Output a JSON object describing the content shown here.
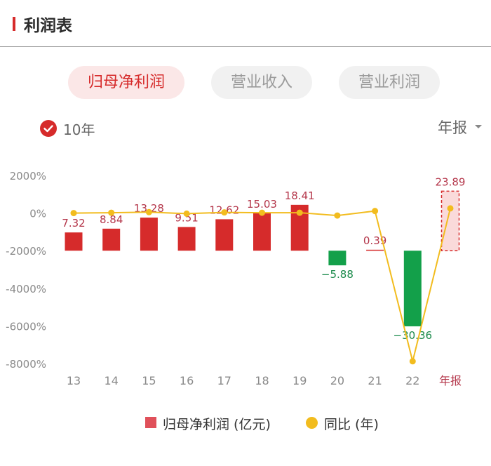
{
  "header": {
    "title": "利润表"
  },
  "tabs": [
    {
      "label": "归母净利润",
      "active": true
    },
    {
      "label": "营业收入",
      "active": false
    },
    {
      "label": "营业利润",
      "active": false
    }
  ],
  "controls": {
    "range_label": "10年",
    "period_label": "年报"
  },
  "colors": {
    "accent": "#d62b2b",
    "positive_bar": "#d62b2b",
    "negative_bar": "#13a04a",
    "yoy_line": "#f2bc1e",
    "forecast_fill": "#fadada"
  },
  "chart_data": {
    "type": "bar",
    "categories": [
      "13",
      "14",
      "15",
      "16",
      "17",
      "18",
      "19",
      "20",
      "21",
      "22",
      "年报"
    ],
    "ytick_labels": [
      "2000%",
      "0%",
      "-2000%",
      "-4000%",
      "-6000%",
      "-8000%"
    ],
    "ylim": [
      -8000,
      2000
    ],
    "grid": false,
    "legend_position": "bottom",
    "series": [
      {
        "name": "归母净利润 (亿元)",
        "type": "bar",
        "values": [
          7.32,
          8.84,
          13.28,
          9.51,
          12.62,
          15.03,
          18.41,
          -5.88,
          0.39,
          -30.36,
          23.89
        ],
        "labels": [
          "7.32",
          "8.84",
          "13.28",
          "9.51",
          "12.62",
          "15.03",
          "18.41",
          "−5.88",
          "0.39",
          "−30.36",
          "23.89"
        ],
        "last_is_estimate": true
      },
      {
        "name": "同比 (年)",
        "type": "line",
        "axis": "left",
        "values": [
          0,
          20,
          50,
          -30,
          35,
          20,
          20,
          -130,
          110,
          -7880,
          250
        ]
      }
    ]
  }
}
